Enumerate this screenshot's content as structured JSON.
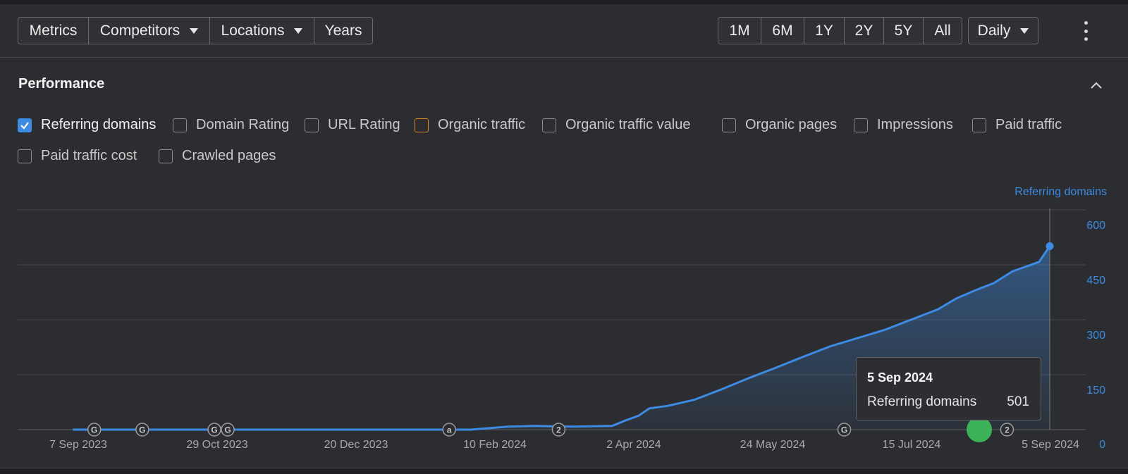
{
  "toolbar": {
    "left_tabs": [
      {
        "label": "Metrics",
        "active": true,
        "dropdown": false
      },
      {
        "label": "Competitors",
        "active": false,
        "dropdown": true
      },
      {
        "label": "Locations",
        "active": false,
        "dropdown": true
      },
      {
        "label": "Years",
        "active": false,
        "dropdown": false
      }
    ],
    "ranges": [
      {
        "label": "1M",
        "active": false
      },
      {
        "label": "6M",
        "active": false
      },
      {
        "label": "1Y",
        "active": true
      },
      {
        "label": "2Y",
        "active": false
      },
      {
        "label": "5Y",
        "active": false
      },
      {
        "label": "All",
        "active": false
      }
    ],
    "granularity": "Daily",
    "more_icon": "vertical-ellipsis-icon"
  },
  "section": {
    "title": "Performance",
    "collapse_icon": "chevron-up-icon"
  },
  "metrics": [
    {
      "label": "Referring domains",
      "checked": true,
      "accent": "#3d8be3"
    },
    {
      "label": "Domain Rating",
      "checked": false
    },
    {
      "label": "URL Rating",
      "checked": false
    },
    {
      "label": "Organic traffic",
      "checked": false,
      "accent": "#e0881c"
    },
    {
      "label": "Organic traffic value",
      "checked": false
    },
    {
      "label": "Organic pages",
      "checked": false
    },
    {
      "label": "Impressions",
      "checked": false
    },
    {
      "label": "Paid traffic",
      "checked": false
    },
    {
      "label": "Paid traffic cost",
      "checked": false
    },
    {
      "label": "Crawled pages",
      "checked": false
    }
  ],
  "tooltip": {
    "date": "5 Sep 2024",
    "label": "Referring domains",
    "value": "501"
  },
  "colors": {
    "accent": "#8a4f10",
    "line": "#3d8be3",
    "background": "#2b2d31",
    "green_marker": "#3cb35a"
  },
  "chart_data": {
    "type": "area",
    "axis_title": "Referring domains",
    "y_ticks": [
      "600",
      "450",
      "300",
      "150",
      "0"
    ],
    "ylim": [
      0,
      600
    ],
    "x_ticks": [
      "7 Sep 2023",
      "29 Oct 2023",
      "20 Dec 2023",
      "10 Feb 2024",
      "2 Apr 2024",
      "24 May 2024",
      "15 Jul 2024",
      "5 Sep 2024"
    ],
    "grid": true,
    "series": [
      {
        "name": "Referring domains",
        "x": [
          "2023-09-05",
          "2023-11-01",
          "2024-01-01",
          "2024-02-01",
          "2024-02-15",
          "2024-02-25",
          "2024-03-10",
          "2024-03-25",
          "2024-03-30",
          "2024-04-04",
          "2024-04-08",
          "2024-04-15",
          "2024-04-25",
          "2024-05-05",
          "2024-05-15",
          "2024-05-25",
          "2024-06-05",
          "2024-06-15",
          "2024-06-25",
          "2024-07-05",
          "2024-07-15",
          "2024-07-25",
          "2024-08-01",
          "2024-08-08",
          "2024-08-15",
          "2024-08-22",
          "2024-09-01",
          "2024-09-05"
        ],
        "y": [
          0,
          0,
          0,
          0,
          8,
          10,
          8,
          10,
          25,
          38,
          58,
          65,
          82,
          110,
          140,
          168,
          200,
          228,
          250,
          272,
          300,
          328,
          358,
          380,
          400,
          432,
          458,
          501
        ]
      }
    ],
    "annotations": [
      {
        "date": "2023-09-13",
        "label": "G"
      },
      {
        "date": "2023-10-01",
        "label": "G"
      },
      {
        "date": "2023-10-28",
        "label": "G"
      },
      {
        "date": "2023-11-02",
        "label": "G"
      },
      {
        "date": "2024-01-24",
        "label": "a"
      },
      {
        "date": "2024-03-05",
        "label": "2"
      },
      {
        "date": "2024-06-20",
        "label": "G"
      },
      {
        "date": "2024-08-20",
        "label": "2"
      }
    ]
  }
}
